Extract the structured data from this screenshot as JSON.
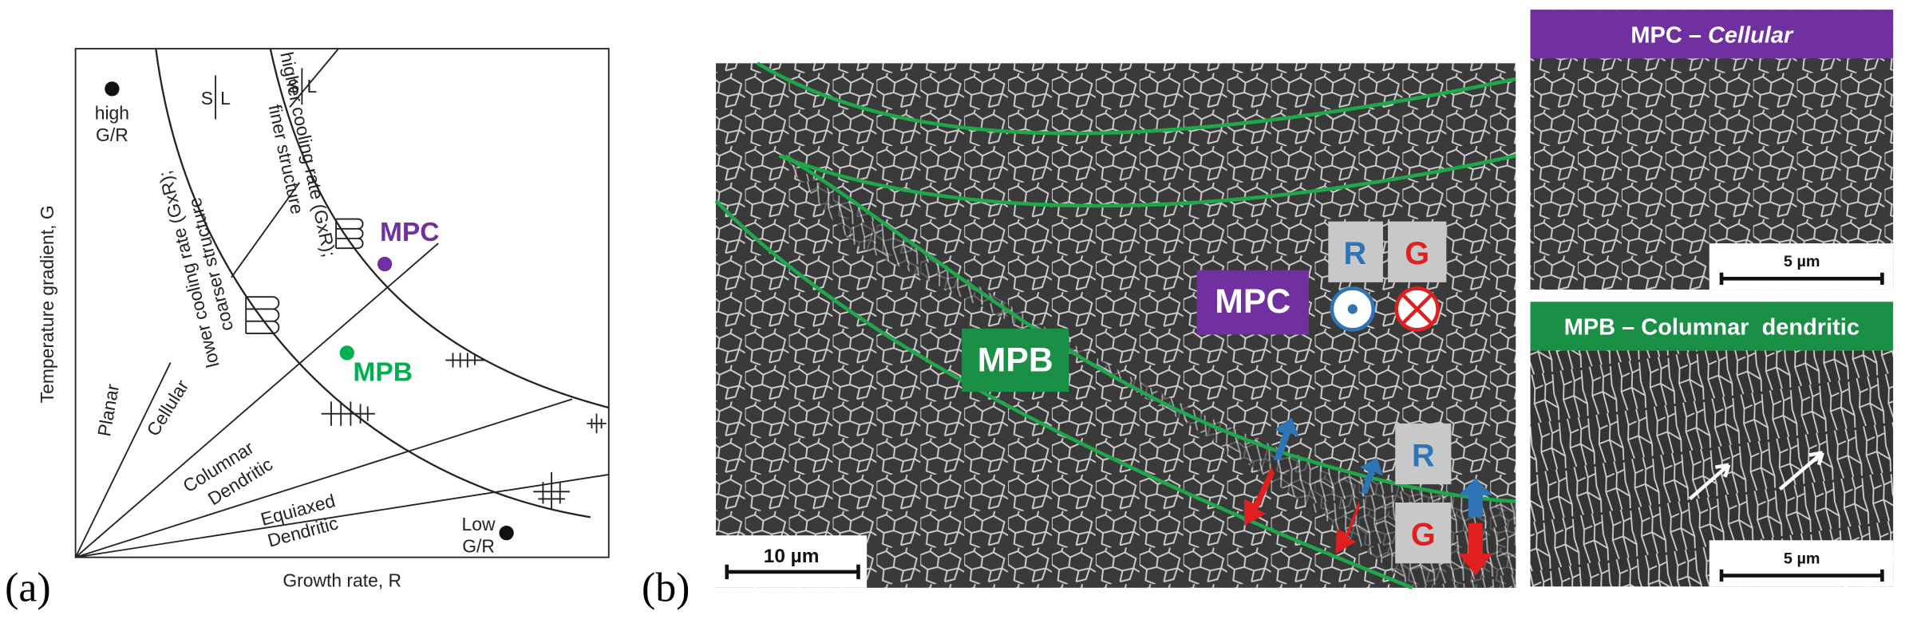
{
  "panel_a": {
    "label": "(a)",
    "x_axis": "Growth rate, R",
    "y_axis": "Temperature gradient, G",
    "high_gr": [
      "high",
      "G/R"
    ],
    "low_gr": [
      "Low",
      "G/R"
    ],
    "solid_liquid": [
      [
        "S",
        "L"
      ],
      [
        "S",
        "L"
      ]
    ],
    "curve_labels": [
      [
        "lower cooling rate (GxR);",
        "coarser structure"
      ],
      [
        "higher cooling rate (GxR);",
        "finer structure"
      ]
    ],
    "regions": [
      "Planar",
      "Cellular",
      [
        "Columnar",
        "Dendritic"
      ],
      [
        "Equiaxed",
        "Dendritic"
      ]
    ],
    "points": [
      "MPC",
      "MPB"
    ]
  },
  "panel_b": {
    "label": "(b)",
    "scale_bar": "10 µm",
    "mpc": "MPC",
    "mpb": "MPB",
    "r_labels": [
      "R",
      "R"
    ],
    "g_labels": [
      "G",
      "G"
    ]
  },
  "panel_c": {
    "title": "MPC – ",
    "title_emphasis": "Cellular",
    "scale_bar": "5 µm"
  },
  "panel_d": {
    "title": "MPB – Columnar  dendritic",
    "scale_bar": "5 µm"
  }
}
